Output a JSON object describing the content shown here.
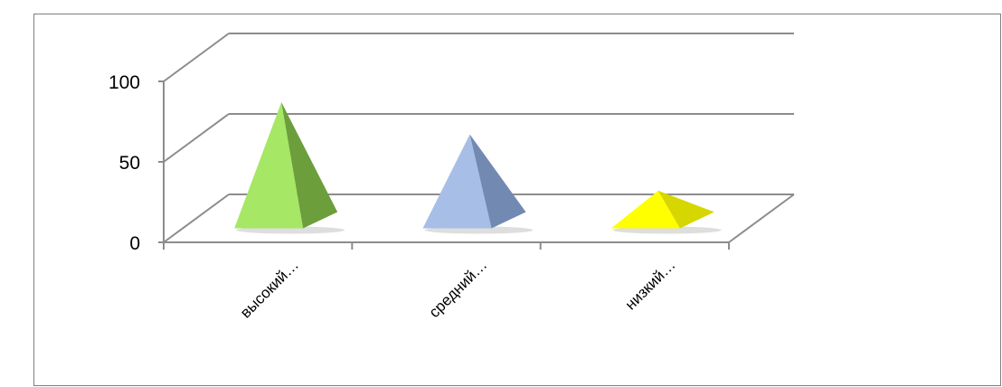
{
  "document": {
    "partial_line": ""
  },
  "chart_data": {
    "type": "bar",
    "shape": "pyramid-3d",
    "categories": [
      "высокий…",
      "средний…",
      "низкий…"
    ],
    "values": [
      75,
      55,
      20
    ],
    "colors": [
      "#a6e765",
      "#a7bfe6",
      "#ffff00"
    ],
    "side_colors": [
      "#6c9e3c",
      "#7289b2",
      "#d6d600"
    ],
    "ylim": [
      0,
      100
    ],
    "yticks": [
      0,
      50,
      100
    ],
    "grid": true,
    "legend": "none"
  }
}
